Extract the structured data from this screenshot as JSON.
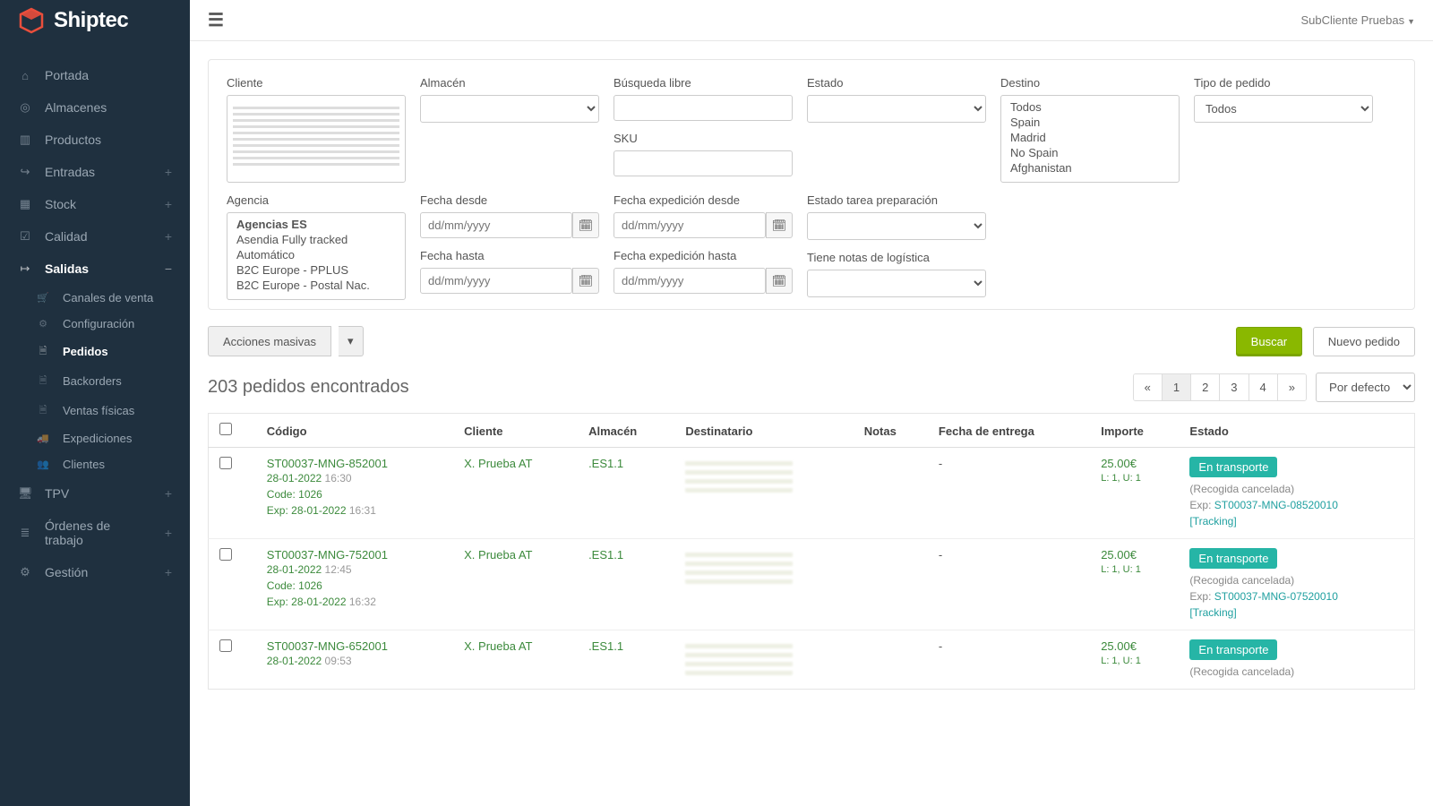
{
  "app": {
    "name": "Shiptec",
    "user_label": "SubCliente Pruebas"
  },
  "sidebar": {
    "items": [
      {
        "icon": "home",
        "label": "Portada"
      },
      {
        "icon": "target",
        "label": "Almacenes"
      },
      {
        "icon": "bars",
        "label": "Productos"
      },
      {
        "icon": "login",
        "label": "Entradas",
        "expandable": true
      },
      {
        "icon": "grid",
        "label": "Stock",
        "expandable": true
      },
      {
        "icon": "check",
        "label": "Calidad",
        "expandable": true
      },
      {
        "icon": "logout",
        "label": "Salidas",
        "expandable": true,
        "active": true,
        "expanded": true,
        "children": [
          {
            "icon": "cart",
            "label": "Canales de venta"
          },
          {
            "icon": "gear",
            "label": "Configuración"
          },
          {
            "icon": "doc",
            "label": "Pedidos",
            "active": true
          },
          {
            "icon": "doc",
            "label": "Backorders"
          },
          {
            "icon": "doc",
            "label": "Ventas físicas"
          },
          {
            "icon": "truck",
            "label": "Expediciones"
          },
          {
            "icon": "users",
            "label": "Clientes"
          }
        ]
      },
      {
        "icon": "monitor",
        "label": "TPV",
        "expandable": true
      },
      {
        "icon": "list",
        "label": "Órdenes de trabajo",
        "expandable": true
      },
      {
        "icon": "cogs",
        "label": "Gestión",
        "expandable": true
      }
    ]
  },
  "filters": {
    "row1": [
      {
        "key": "cliente",
        "label": "Cliente",
        "type": "listbox-blurred"
      },
      {
        "key": "almacen",
        "label": "Almacén",
        "type": "select"
      },
      {
        "key": "busqueda",
        "label": "Búsqueda libre",
        "type": "text",
        "below": {
          "label": "SKU",
          "type": "text"
        }
      },
      {
        "key": "estado",
        "label": "Estado",
        "type": "select"
      },
      {
        "key": "destino",
        "label": "Destino",
        "type": "listbox",
        "options": [
          "Todos",
          "Spain",
          "Madrid",
          "No Spain",
          "Afghanistan"
        ]
      },
      {
        "key": "tipo",
        "label": "Tipo de pedido",
        "type": "select",
        "value": "Todos"
      }
    ],
    "row2": [
      {
        "key": "agencia",
        "label": "Agencia",
        "type": "listbox",
        "group": "Agencias ES",
        "options": [
          "Asendia Fully tracked",
          "Automático",
          "B2C Europe - PPLUS",
          "B2C Europe - Postal Nac."
        ]
      },
      {
        "key": "fdesde",
        "label": "Fecha desde",
        "type": "date",
        "below": {
          "label": "Fecha hasta",
          "type": "date"
        }
      },
      {
        "key": "fexpd",
        "label": "Fecha expedición desde",
        "type": "date",
        "below": {
          "label": "Fecha expedición hasta",
          "type": "date"
        }
      },
      {
        "key": "etarea",
        "label": "Estado tarea preparación",
        "type": "select",
        "below": {
          "label": "Tiene notas de logística",
          "type": "select"
        }
      }
    ],
    "date_placeholder": "dd/mm/yyyy"
  },
  "actions": {
    "bulk": "Acciones masivas",
    "search": "Buscar",
    "new": "Nuevo pedido"
  },
  "results": {
    "count_text": "203 pedidos encontrados",
    "pages": [
      "«",
      "1",
      "2",
      "3",
      "4",
      "»"
    ],
    "active_page": "1",
    "sort": "Por defecto"
  },
  "table": {
    "columns": [
      "",
      "Código",
      "Cliente",
      "Almacén",
      "Destinatario",
      "Notas",
      "Fecha de entrega",
      "Importe",
      "Estado"
    ],
    "rows": [
      {
        "code": "ST00037-MNG-852001",
        "date": "28-01-2022",
        "time": "16:30",
        "subcode": "Code: 1026",
        "exp": "Exp: 28-01-2022",
        "exptime": "16:31",
        "client": "X. Prueba AT",
        "wh": ".ES1.1",
        "delivery": "-",
        "amount": "25.00€",
        "lu": "L: 1, U: 1",
        "badge": "En transporte",
        "status_note": "(Recogida cancelada)",
        "exp_code": "ST00037-MNG-08520010",
        "tracking": "[Tracking]"
      },
      {
        "code": "ST00037-MNG-752001",
        "date": "28-01-2022",
        "time": "12:45",
        "subcode": "Code: 1026",
        "exp": "Exp: 28-01-2022",
        "exptime": "16:32",
        "client": "X. Prueba AT",
        "wh": ".ES1.1",
        "delivery": "-",
        "amount": "25.00€",
        "lu": "L: 1, U: 1",
        "badge": "En transporte",
        "status_note": "(Recogida cancelada)",
        "exp_code": "ST00037-MNG-07520010",
        "tracking": "[Tracking]"
      },
      {
        "code": "ST00037-MNG-652001",
        "date": "28-01-2022",
        "time": "09:53",
        "subcode": "",
        "exp": "",
        "exptime": "",
        "client": "X. Prueba AT",
        "wh": ".ES1.1",
        "delivery": "-",
        "amount": "25.00€",
        "lu": "L: 1, U: 1",
        "badge": "En transporte",
        "status_note": "(Recogida cancelada)",
        "exp_code": "",
        "tracking": ""
      }
    ]
  },
  "icons": {
    "home": "⌂",
    "target": "◎",
    "bars": "▥",
    "login": "↪",
    "grid": "▦",
    "check": "☑",
    "logout": "↦",
    "monitor": "🖥",
    "list": "≣",
    "cogs": "⚙",
    "cart": "🛒",
    "gear": "⚙",
    "doc": "🗎",
    "truck": "🚚",
    "users": "👥",
    "cal": "🗓"
  },
  "colors": {
    "sidebar_bg": "#1f303f",
    "accent_green": "#8ab800",
    "teal_badge": "#26b5a6",
    "link_green": "#3c8a3c",
    "link_teal": "#20a0a0"
  }
}
